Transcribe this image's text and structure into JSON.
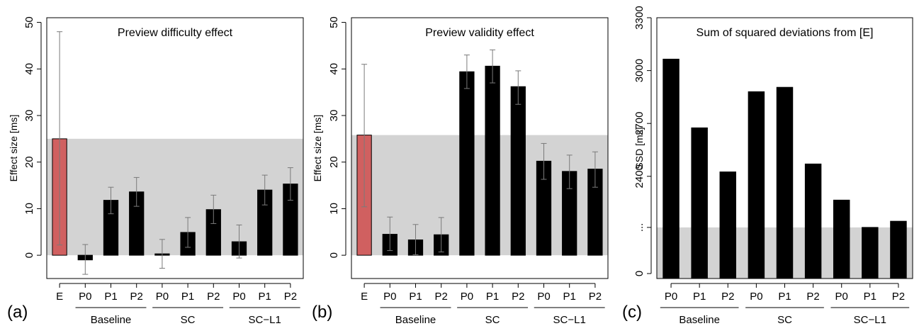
{
  "chart_data": [
    {
      "type": "bar",
      "panel_label": "(a)",
      "title": "Preview difficulty effect",
      "ylabel": "Effect size [ms]",
      "ylim": [
        -5,
        51
      ],
      "yticks": [
        0,
        10,
        20,
        30,
        40,
        50
      ],
      "grid": false,
      "categories": [
        "E",
        "P0",
        "P1",
        "P2",
        "P0",
        "P1",
        "P2",
        "P0",
        "P1",
        "P2"
      ],
      "groups": [
        {
          "label": "Baseline",
          "members": [
            1,
            2,
            3
          ]
        },
        {
          "label": "SC",
          "members": [
            4,
            5,
            6
          ]
        },
        {
          "label": "SC−L1",
          "members": [
            7,
            8,
            9
          ]
        }
      ],
      "values": [
        25,
        -1,
        11.8,
        13.6,
        0.3,
        4.9,
        9.8,
        2.9,
        14.0,
        15.3
      ],
      "err_low": [
        2.2,
        -4.1,
        8.9,
        10.5,
        -2.8,
        1.7,
        6.8,
        -0.6,
        10.8,
        11.8
      ],
      "err_high": [
        48,
        2.3,
        14.6,
        16.7,
        3.4,
        8.1,
        12.9,
        6.5,
        17.2,
        18.8
      ],
      "band": [
        0,
        25
      ],
      "colors": {
        "E": "#d06060",
        "bars": "#000000",
        "band": "#d3d3d3",
        "errorbar": "#7a7a7a"
      }
    },
    {
      "type": "bar",
      "panel_label": "(b)",
      "title": "Preview validity effect",
      "ylabel": "Effect size [ms]",
      "ylim": [
        -5,
        51
      ],
      "yticks": [
        0,
        10,
        20,
        30,
        40,
        50
      ],
      "grid": false,
      "categories": [
        "E",
        "P0",
        "P1",
        "P2",
        "P0",
        "P1",
        "P2",
        "P0",
        "P1",
        "P2"
      ],
      "groups": [
        {
          "label": "Baseline",
          "members": [
            1,
            2,
            3
          ]
        },
        {
          "label": "SC",
          "members": [
            4,
            5,
            6
          ]
        },
        {
          "label": "SC−L1",
          "members": [
            7,
            8,
            9
          ]
        }
      ],
      "values": [
        25.8,
        4.5,
        3.3,
        4.4,
        39.4,
        40.6,
        36.2,
        20.2,
        18.0,
        18.5
      ],
      "err_low": [
        10.4,
        1.0,
        0.1,
        0.7,
        35.8,
        37.0,
        32.4,
        16.3,
        14.3,
        14.6
      ],
      "err_high": [
        41.0,
        8.2,
        6.6,
        8.1,
        43.0,
        44.1,
        39.6,
        24.0,
        21.5,
        22.2
      ],
      "band": [
        0,
        25.8
      ],
      "colors": {
        "E": "#d06060",
        "bars": "#000000",
        "band": "#d3d3d3",
        "errorbar": "#7a7a7a"
      }
    },
    {
      "type": "bar",
      "panel_label": "(c)",
      "title": "Sum of squared deviations from [E]",
      "ylabel": "SSD [ms]",
      "ylim": [
        1820,
        3300
      ],
      "yticks": [
        2400,
        2700,
        3000,
        3300
      ],
      "ytick_extra_labels": [
        "0",
        "..."
      ],
      "axis_break": true,
      "grid": false,
      "categories": [
        "P0",
        "P1",
        "P2",
        "P0",
        "P1",
        "P2",
        "P0",
        "P1",
        "P2"
      ],
      "groups": [
        {
          "label": "Baseline",
          "members": [
            0,
            1,
            2
          ]
        },
        {
          "label": "SC",
          "members": [
            3,
            4,
            5
          ]
        },
        {
          "label": "SC−L1",
          "members": [
            6,
            7,
            8
          ]
        }
      ],
      "values": [
        3065,
        2675,
        2425,
        2880,
        2905,
        2470,
        2265,
        2110,
        2145
      ],
      "band": [
        1820,
        2110
      ],
      "colors": {
        "bars": "#000000",
        "band": "#d3d3d3"
      }
    }
  ]
}
